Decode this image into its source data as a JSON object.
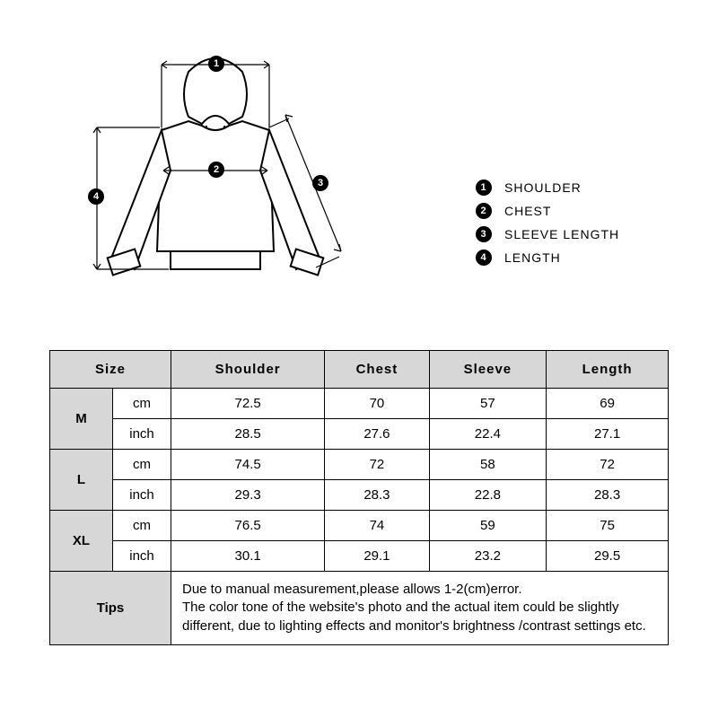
{
  "legend": [
    {
      "num": "1",
      "label": "SHOULDER"
    },
    {
      "num": "2",
      "label": "CHEST"
    },
    {
      "num": "3",
      "label": "SLEEVE LENGTH"
    },
    {
      "num": "4",
      "label": "LENGTH"
    }
  ],
  "table": {
    "headers": {
      "size": "Size",
      "shoulder": "Shoulder",
      "chest": "Chest",
      "sleeve": "Sleeve",
      "length": "Length"
    },
    "units": {
      "cm": "cm",
      "inch": "inch"
    },
    "rows": [
      {
        "size": "M",
        "cm": {
          "shoulder": "72.5",
          "chest": "70",
          "sleeve": "57",
          "length": "69"
        },
        "inch": {
          "shoulder": "28.5",
          "chest": "27.6",
          "sleeve": "22.4",
          "length": "27.1"
        }
      },
      {
        "size": "L",
        "cm": {
          "shoulder": "74.5",
          "chest": "72",
          "sleeve": "58",
          "length": "72"
        },
        "inch": {
          "shoulder": "29.3",
          "chest": "28.3",
          "sleeve": "22.8",
          "length": "28.3"
        }
      },
      {
        "size": "XL",
        "cm": {
          "shoulder": "76.5",
          "chest": "74",
          "sleeve": "59",
          "length": "75"
        },
        "inch": {
          "shoulder": "30.1",
          "chest": "29.1",
          "sleeve": "23.2",
          "length": "29.5"
        }
      }
    ],
    "tips_label": "Tips",
    "tips_text": "Due to manual measurement,please allows 1-2(cm)error.\nThe color tone of the website's photo and the actual item could be slightly different, due to lighting effects and monitor's brightness /contrast settings etc."
  },
  "diagram": {
    "badges": {
      "b1": "1",
      "b2": "2",
      "b3": "3",
      "b4": "4"
    },
    "colors": {
      "stroke": "#000000",
      "fill": "#ffffff"
    }
  }
}
